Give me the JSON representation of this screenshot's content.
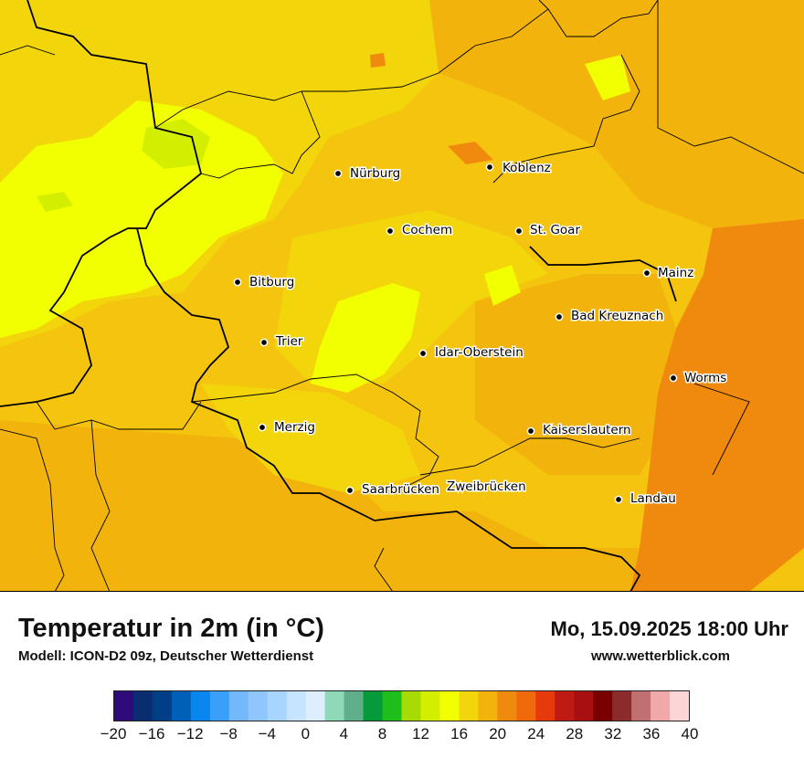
{
  "map": {
    "cities": [
      {
        "name": "Nürburg"
      },
      {
        "name": "Koblenz"
      },
      {
        "name": "Cochem"
      },
      {
        "name": "St. Goar"
      },
      {
        "name": "Mainz"
      },
      {
        "name": "Bitburg"
      },
      {
        "name": "Bad Kreuznach"
      },
      {
        "name": "Trier"
      },
      {
        "name": "Idar-Oberstein"
      },
      {
        "name": "Worms"
      },
      {
        "name": "Merzig"
      },
      {
        "name": "Kaiserslautern"
      },
      {
        "name": "Saarbrücken"
      },
      {
        "name": "Zweibrücken"
      },
      {
        "name": "Landau"
      }
    ]
  },
  "footer": {
    "title": "Temperatur in 2m (in °C)",
    "subtitle": "Modell: ICON-D2 09z, Deutscher Wetterdienst",
    "datetime": "Mo, 15.09.2025 18:00 Uhr",
    "website": "www.wetterblick.com"
  },
  "legend": {
    "colors": [
      "#2e0a7a",
      "#0a2d72",
      "#003f86",
      "#0060b8",
      "#0a86f0",
      "#3a9ff8",
      "#74b8fc",
      "#8ec6fd",
      "#a8d5fe",
      "#c6e3ff",
      "#dceeff",
      "#8fd9b8",
      "#5faf8a",
      "#069a3a",
      "#1fbf1b",
      "#a6db06",
      "#d4ee00",
      "#f2ff00",
      "#f2d50a",
      "#f2b40c",
      "#f08a0e",
      "#f06a0c",
      "#e6390c",
      "#c01a14",
      "#a8100f",
      "#7a0000",
      "#8b2b2b",
      "#c07070",
      "#f0a8a8",
      "#fcd6d6"
    ],
    "ticks": [
      "−20",
      "−16",
      "−12",
      "−8",
      "−4",
      "0",
      "4",
      "8",
      "12",
      "16",
      "20",
      "24",
      "28",
      "32",
      "36",
      "40"
    ]
  }
}
